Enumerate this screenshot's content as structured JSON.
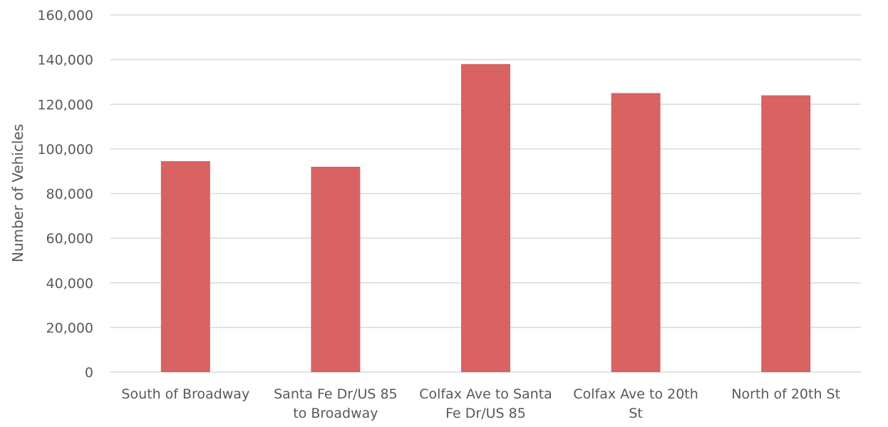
{
  "chart_data": {
    "type": "bar",
    "title": "",
    "xlabel": "",
    "ylabel": "Number of Vehicles",
    "ylim": [
      0,
      160000
    ],
    "yticks": [
      0,
      20000,
      40000,
      60000,
      80000,
      100000,
      120000,
      140000,
      160000
    ],
    "ytick_labels": [
      "0",
      "20,000",
      "40,000",
      "60,000",
      "80,000",
      "100,000",
      "120,000",
      "140,000",
      "160,000"
    ],
    "categories": [
      [
        "South of Broadway"
      ],
      [
        "Santa Fe Dr/US 85",
        "to Broadway"
      ],
      [
        "Colfax Ave to Santa",
        "Fe Dr/US 85"
      ],
      [
        "Colfax Ave to 20th",
        "St"
      ],
      [
        "North of 20th St"
      ]
    ],
    "values": [
      94500,
      92000,
      138000,
      125000,
      124000
    ],
    "bar_color": "#d96262",
    "grid": true,
    "legend": "none"
  }
}
